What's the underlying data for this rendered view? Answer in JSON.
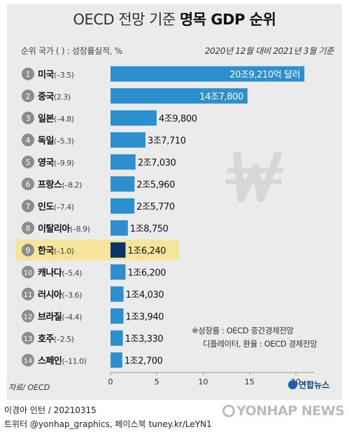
{
  "title_light": "OECD 전망 기준",
  "title_bold": "명목 GDP 순위",
  "subtitle_left": "순위  국가   (    ) : 성장률실적, %",
  "subtitle_right": "2020년 12월 대비 2021년 3월 기준",
  "source": "자료/ OECD",
  "note": [
    "※성장률 : OECD 중간경제전망",
    "디플레이터, 환율 : OECD 경제전망"
  ],
  "brand": "연합뉴스",
  "credit_line1": "이경아 인턴 / 20210315",
  "credit_line2": "트위터 @yonhap_graphics, 페이스북 tuney.kr/LeYN1",
  "watermark": "YONHAP NEWS",
  "colors": {
    "bar": "#2d8fce",
    "highlight_bar": "#0b3566",
    "highlight_row": "#f6e49a",
    "rank_circle": "#8c8c8c",
    "won_symbol": "#d7d7d7"
  },
  "icons": [
    "won-symbol-icon",
    "yonhap-logo-icon"
  ],
  "chart_data": {
    "type": "bar",
    "orientation": "horizontal",
    "xlim": [
      0,
      22
    ],
    "xticks": [
      0,
      5,
      10,
      15,
      20
    ],
    "x_unit": "조 달러",
    "highlight_rank": 9,
    "rows": [
      {
        "rank": "1",
        "country": "미국",
        "growth": "(–3.5)",
        "value": 20.921,
        "label": "20조9,210억 달러"
      },
      {
        "rank": "2",
        "country": "중국",
        "growth": "(2.3)",
        "value": 14.78,
        "label": "14조7,800"
      },
      {
        "rank": "3",
        "country": "일본",
        "growth": "(–4.8)",
        "value": 4.98,
        "label": "4조9,800"
      },
      {
        "rank": "4",
        "country": "독일",
        "growth": "(–5.3)",
        "value": 3.771,
        "label": "3조7,710"
      },
      {
        "rank": "5",
        "country": "영국",
        "growth": "(–9.9)",
        "value": 2.703,
        "label": "2조7,030"
      },
      {
        "rank": "6",
        "country": "프랑스",
        "growth": "(–8.2)",
        "value": 2.596,
        "label": "2조5,960"
      },
      {
        "rank": "7",
        "country": "인도",
        "growth": "(–7.4)",
        "value": 2.577,
        "label": "2조5,770"
      },
      {
        "rank": "8",
        "country": "이탈리아",
        "growth": "(–8.9)",
        "value": 1.875,
        "label": "1조8,750"
      },
      {
        "rank": "9",
        "country": "한국",
        "growth": "(–1.0)",
        "value": 1.624,
        "label": "1조6,240"
      },
      {
        "rank": "10",
        "country": "캐나다",
        "growth": "(–5.4)",
        "value": 1.62,
        "label": "1조6,200"
      },
      {
        "rank": "11",
        "country": "러시아",
        "growth": "(–3.6)",
        "value": 1.403,
        "label": "1조4,030"
      },
      {
        "rank": "12",
        "country": "브라질",
        "growth": "(–4.4)",
        "value": 1.394,
        "label": "1조3,940"
      },
      {
        "rank": "13",
        "country": "호주",
        "growth": "(–2.5)",
        "value": 1.333,
        "label": "1조3,330"
      },
      {
        "rank": "14",
        "country": "스페인",
        "growth": "(–11.0)",
        "value": 1.27,
        "label": "1조2,700"
      }
    ]
  }
}
